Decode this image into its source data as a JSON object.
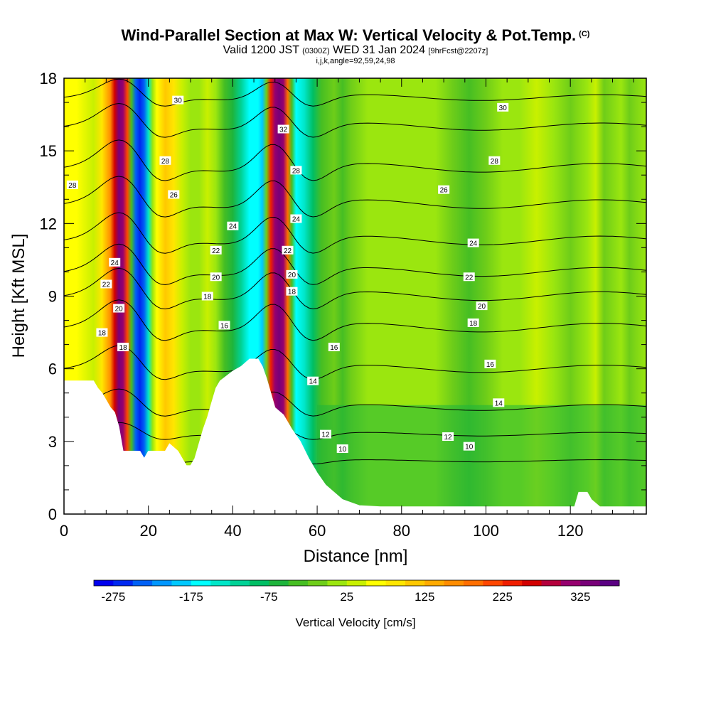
{
  "header": {
    "title": "Wind-Parallel Section at Max W: Vertical Velocity & Pot.Temp.",
    "title_mark": "(C)",
    "valid_prefix": "Valid 1200 JST",
    "valid_utc": "(0300Z)",
    "valid_date": "WED 31 Jan 2024",
    "forecast": "[9hrFcst@2207z]",
    "params": "i,j,k,angle=92,59,24,98"
  },
  "chart_data": {
    "type": "heatmap",
    "xlabel": "Distance [nm]",
    "ylabel": "Height [Kft MSL]",
    "xlim": [
      0,
      138
    ],
    "ylim": [
      0,
      18
    ],
    "x_ticks": [
      "0",
      "20",
      "40",
      "60",
      "80",
      "100",
      "120"
    ],
    "y_ticks": [
      "0",
      "3",
      "6",
      "9",
      "12",
      "15",
      "18"
    ],
    "colorbar": {
      "label": "Vertical Velocity [cm/s]",
      "min": -300,
      "max": 375,
      "tick_labels": [
        "-275",
        "-175",
        "-75",
        "25",
        "125",
        "225",
        "325"
      ],
      "colors": [
        "#0000ee",
        "#0028f0",
        "#0060f5",
        "#0096ff",
        "#00c8ff",
        "#00ffff",
        "#00e6c8",
        "#00d296",
        "#00be64",
        "#1eb43c",
        "#46be23",
        "#6ecd19",
        "#9be60f",
        "#c8f000",
        "#ffff00",
        "#ffe600",
        "#ffc800",
        "#ffaa00",
        "#ff8c00",
        "#ff6e00",
        "#ff4600",
        "#f01e00",
        "#d20000",
        "#b4003c",
        "#96006e",
        "#780078",
        "#5a0082"
      ]
    },
    "w_field": {
      "background": "#a5e20c",
      "x_profile": [
        [
          0,
          62
        ],
        [
          3,
          55
        ],
        [
          7,
          45
        ],
        [
          9,
          75
        ],
        [
          11,
          160
        ],
        [
          12,
          270
        ],
        [
          13,
          330
        ],
        [
          14,
          300
        ],
        [
          15,
          200
        ],
        [
          16,
          -40
        ],
        [
          17,
          -230
        ],
        [
          18,
          -270
        ],
        [
          19,
          -240
        ],
        [
          20,
          -130
        ],
        [
          21,
          0
        ],
        [
          22,
          60
        ],
        [
          24,
          110
        ],
        [
          26,
          80
        ],
        [
          28,
          40
        ],
        [
          30,
          20
        ],
        [
          32,
          15
        ],
        [
          34,
          45
        ],
        [
          36,
          15
        ],
        [
          38,
          -30
        ],
        [
          40,
          -70
        ],
        [
          42,
          -120
        ],
        [
          44,
          -165
        ],
        [
          46,
          -175
        ],
        [
          47,
          -185
        ],
        [
          48,
          -20
        ],
        [
          49,
          230
        ],
        [
          50,
          300
        ],
        [
          51,
          335
        ],
        [
          52,
          300
        ],
        [
          53,
          180
        ],
        [
          54,
          -50
        ],
        [
          55,
          -170
        ],
        [
          57,
          -150
        ],
        [
          59,
          -80
        ],
        [
          61,
          -40
        ],
        [
          64,
          -10
        ],
        [
          66,
          -35
        ],
        [
          68,
          -10
        ],
        [
          72,
          15
        ],
        [
          80,
          20
        ],
        [
          84,
          20
        ],
        [
          88,
          0
        ],
        [
          92,
          -10
        ],
        [
          96,
          -35
        ],
        [
          100,
          -5
        ],
        [
          104,
          10
        ],
        [
          108,
          5
        ],
        [
          112,
          25
        ],
        [
          116,
          5
        ],
        [
          120,
          -15
        ],
        [
          124,
          20
        ],
        [
          126,
          45
        ],
        [
          128,
          -20
        ],
        [
          132,
          10
        ],
        [
          134,
          -15
        ],
        [
          138,
          10
        ]
      ],
      "lower_layer": {
        "top_kft": 4.5,
        "value": -60
      }
    },
    "terrain_kft": [
      [
        0,
        5.5
      ],
      [
        3,
        5.5
      ],
      [
        7,
        5.5
      ],
      [
        8,
        5.2
      ],
      [
        9,
        5.0
      ],
      [
        10,
        4.7
      ],
      [
        11,
        4.4
      ],
      [
        12,
        4.2
      ],
      [
        13,
        3.6
      ],
      [
        14,
        2.6
      ],
      [
        18,
        2.6
      ],
      [
        19,
        2.3
      ],
      [
        20,
        2.6
      ],
      [
        24,
        2.6
      ],
      [
        25,
        2.9
      ],
      [
        27,
        2.6
      ],
      [
        28,
        2.3
      ],
      [
        29,
        2.0
      ],
      [
        30,
        2.0
      ],
      [
        31,
        2.3
      ],
      [
        32,
        2.9
      ],
      [
        33,
        3.5
      ],
      [
        34,
        4.0
      ],
      [
        35,
        4.6
      ],
      [
        36,
        5.2
      ],
      [
        37,
        5.5
      ],
      [
        40,
        5.9
      ],
      [
        42,
        6.1
      ],
      [
        44,
        6.4
      ],
      [
        46,
        6.4
      ],
      [
        47,
        6.1
      ],
      [
        48,
        5.6
      ],
      [
        49,
        5.0
      ],
      [
        50,
        4.4
      ],
      [
        52,
        4.1
      ],
      [
        54,
        3.5
      ],
      [
        56,
        3.0
      ],
      [
        58,
        2.3
      ],
      [
        60,
        1.7
      ],
      [
        62,
        1.2
      ],
      [
        64,
        0.9
      ],
      [
        66,
        0.6
      ],
      [
        70,
        0.35
      ],
      [
        75,
        0.3
      ],
      [
        100,
        0.3
      ],
      [
        121,
        0.3
      ],
      [
        122,
        0.9
      ],
      [
        124,
        0.9
      ],
      [
        125,
        0.6
      ],
      [
        127,
        0.3
      ],
      [
        138,
        0.3
      ]
    ],
    "theta_contours": [
      {
        "label": "10",
        "mean_kft": 2.2,
        "amp_kft": 0.3,
        "label_at": [
          [
            66,
            2.7
          ],
          [
            96,
            2.8
          ]
        ]
      },
      {
        "label": "12",
        "mean_kft": 3.3,
        "amp_kft": 0.5,
        "label_at": [
          [
            62,
            3.3
          ],
          [
            91,
            3.2
          ]
        ]
      },
      {
        "label": "14",
        "mean_kft": 4.4,
        "amp_kft": 0.8,
        "label_at": [
          [
            59,
            5.5
          ],
          [
            103,
            4.6
          ]
        ]
      },
      {
        "label": "16",
        "mean_kft": 6.0,
        "amp_kft": 1.0,
        "label_at": [
          [
            38,
            7.8
          ],
          [
            64,
            6.9
          ],
          [
            101,
            6.2
          ]
        ]
      },
      {
        "label": "18",
        "mean_kft": 7.7,
        "amp_kft": 1.2,
        "label_at": [
          [
            9,
            7.5
          ],
          [
            14,
            6.9
          ],
          [
            34,
            9.0
          ],
          [
            54,
            9.2
          ],
          [
            97,
            7.9
          ]
        ]
      },
      {
        "label": "20",
        "mean_kft": 9.0,
        "amp_kft": 1.2,
        "label_at": [
          [
            13,
            8.5
          ],
          [
            36,
            9.8
          ],
          [
            54,
            9.9
          ],
          [
            99,
            8.6
          ]
        ]
      },
      {
        "label": "22",
        "mean_kft": 10.0,
        "amp_kft": 1.2,
        "label_at": [
          [
            10,
            9.5
          ],
          [
            36,
            10.9
          ],
          [
            53,
            10.9
          ],
          [
            96,
            9.8
          ]
        ]
      },
      {
        "label": "24",
        "mean_kft": 11.3,
        "amp_kft": 1.2,
        "label_at": [
          [
            12,
            10.4
          ],
          [
            40,
            11.9
          ],
          [
            55,
            12.2
          ],
          [
            97,
            11.2
          ]
        ]
      },
      {
        "label": "26",
        "mean_kft": 12.8,
        "amp_kft": 1.2,
        "label_at": [
          [
            26,
            13.2
          ],
          [
            90,
            13.4
          ]
        ]
      },
      {
        "label": "28",
        "mean_kft": 14.3,
        "amp_kft": 1.2,
        "label_at": [
          [
            2,
            13.6
          ],
          [
            24,
            14.6
          ],
          [
            55,
            14.2
          ],
          [
            102,
            14.6
          ]
        ]
      },
      {
        "label": "30",
        "mean_kft": 16.0,
        "amp_kft": 1.0,
        "label_at": [
          [
            27,
            17.1
          ],
          [
            104,
            16.8
          ]
        ]
      },
      {
        "label": "32",
        "mean_kft": 17.2,
        "amp_kft": 0.8,
        "label_at": [
          [
            52,
            15.9
          ]
        ]
      }
    ]
  }
}
